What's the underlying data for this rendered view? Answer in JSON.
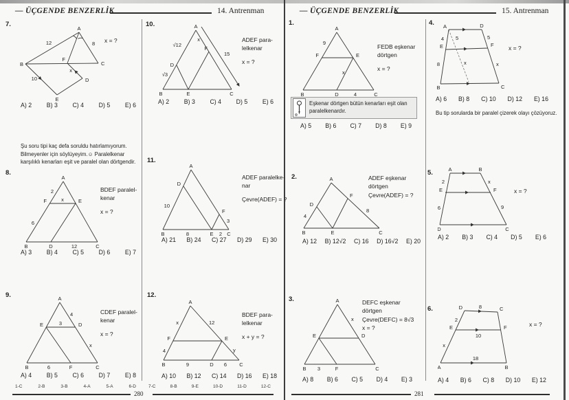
{
  "page_left": {
    "title": "— ÜÇGENDE BENZERLİK",
    "training": "14. Antrenman",
    "page_number": "280",
    "answer_key_left": [
      "1-C",
      "2-B",
      "3-B",
      "4-A",
      "5-A",
      "6-D"
    ],
    "answer_key_right": [
      "7-C",
      "8-B",
      "9-E",
      "10-D",
      "11-D",
      "12-C"
    ],
    "note": "Şu soru tipi kaç defa soruldu hatırlamıyorum. Bilmeyenler için söylüyeyim.☺ Paralelkenar karşılıklı kenarları eşit ve paralel olan dörtgendir."
  },
  "page_right": {
    "title": "— ÜÇGENDE BENZERLİK",
    "training": "15. Antrenman",
    "page_number": "281",
    "note_box": "Eşkenar dörtgen bütün kenarları eşit olan paralelkenardır.",
    "tip": "Bu tip sorularda bir paralel çizerek olayı çözüyoruz."
  },
  "problems": {
    "p7": {
      "number": "7.",
      "v": [
        "A",
        "B",
        "C",
        "F",
        "D",
        "E"
      ],
      "m": [
        "12",
        "8",
        "10",
        "x"
      ],
      "side": [
        "x = ?"
      ],
      "answers": [
        "A) 2",
        "B) 3",
        "C) 4",
        "D) 5",
        "E) 6"
      ]
    },
    "p8": {
      "number": "8.",
      "v": [
        "A",
        "F",
        "E",
        "B",
        "D",
        "C"
      ],
      "m": [
        "2",
        "x",
        "6",
        "12"
      ],
      "side": [
        "BDEF paralel-",
        "kenar",
        "x = ?"
      ],
      "answers": [
        "A) 3",
        "B) 4",
        "C) 5",
        "D) 6",
        "E) 7"
      ]
    },
    "p9": {
      "number": "9.",
      "v": [
        "A",
        "E",
        "D",
        "B",
        "F",
        "C"
      ],
      "m": [
        "4",
        "3",
        "x",
        "6"
      ],
      "side": [
        "CDEF paralel-",
        "kenar",
        "x = ?"
      ],
      "answers": [
        "A) 4",
        "B) 5",
        "C) 6",
        "D) 7",
        "E) 8"
      ]
    },
    "p10": {
      "number": "10.",
      "v": [
        "A",
        "B",
        "E",
        "C",
        "D",
        "F"
      ],
      "m": [
        "√12",
        "√3",
        "x",
        "15"
      ],
      "side": [
        "ADEF para-",
        "lelkenar",
        "x = ?"
      ],
      "answers": [
        "A) 2",
        "B) 3",
        "C) 4",
        "D) 5",
        "E) 6"
      ]
    },
    "p11": {
      "number": "11.",
      "v": [
        "A",
        "D",
        "B",
        "E",
        "C",
        "F"
      ],
      "m": [
        "10",
        "8",
        "2",
        "3"
      ],
      "side": [
        "ADEF paralelke-",
        "nar",
        "Çevre(ADEF) = ?"
      ],
      "answers": [
        "A) 21",
        "B) 24",
        "C) 27",
        "D) 29",
        "E) 30"
      ]
    },
    "p12": {
      "number": "12.",
      "v": [
        "A",
        "F",
        "E",
        "B",
        "D",
        "C"
      ],
      "m": [
        "x",
        "12",
        "4",
        "y",
        "9",
        "6"
      ],
      "side": [
        "BDEF para-",
        "lelkenar",
        "x + y = ?"
      ],
      "answers": [
        "A) 10",
        "B) 12",
        "C) 14",
        "D) 16",
        "E) 18"
      ]
    },
    "p1": {
      "number": "1.",
      "v": [
        "A",
        "F",
        "E",
        "B",
        "D",
        "C"
      ],
      "m": [
        "9",
        "x",
        "4"
      ],
      "side": [
        "FEDB eşkenar",
        "dörtgen",
        "x = ?"
      ],
      "answers": [
        "A) 5",
        "B) 6",
        "C) 7",
        "D) 8",
        "E) 9"
      ]
    },
    "p2": {
      "number": "2.",
      "v": [
        "A",
        "D",
        "F",
        "B",
        "E",
        "C"
      ],
      "m": [
        "4",
        "8"
      ],
      "side": [
        "ADEF eşkenar",
        "dörtgen",
        "Çevre(ADEF) = ?"
      ],
      "answers": [
        "A) 12",
        "B) 12√2",
        "C) 16",
        "D) 16√2",
        "E) 20"
      ]
    },
    "p3": {
      "number": "3.",
      "v": [
        "A",
        "E",
        "D",
        "B",
        "F",
        "C"
      ],
      "m": [
        "x",
        "3"
      ],
      "side": [
        "DEFC eşkenar",
        "dörtgen",
        "Çevre(DEFC) = 8√3",
        "x = ?"
      ],
      "answers": [
        "A) 8",
        "B) 6",
        "C) 5",
        "D) 4",
        "E) 3"
      ]
    },
    "p4": {
      "number": "4.",
      "v": [
        "A",
        "D",
        "E",
        "F",
        "B",
        "C"
      ],
      "m": [
        "4",
        "5",
        "5",
        "8",
        "x",
        "x"
      ],
      "side": [
        "x = ?"
      ],
      "answers": [
        "A) 6",
        "B) 8",
        "C) 10",
        "D) 12",
        "E) 16"
      ]
    },
    "p5": {
      "number": "5.",
      "v": [
        "A",
        "B",
        "E",
        "F",
        "D",
        "C"
      ],
      "m": [
        "2",
        "x",
        "6",
        "9"
      ],
      "side": [
        "x = ?"
      ],
      "answers": [
        "A) 2",
        "B) 3",
        "C) 4",
        "D) 5",
        "E) 6"
      ]
    },
    "p6": {
      "number": "6.",
      "v": [
        "D",
        "C",
        "E",
        "F",
        "A",
        "B"
      ],
      "m": [
        "8",
        "2",
        "10",
        "x",
        "18"
      ],
      "side": [
        "x = ?"
      ],
      "answers": [
        "A) 4",
        "B) 6",
        "C) 8",
        "D) 10",
        "E) 12"
      ]
    }
  }
}
